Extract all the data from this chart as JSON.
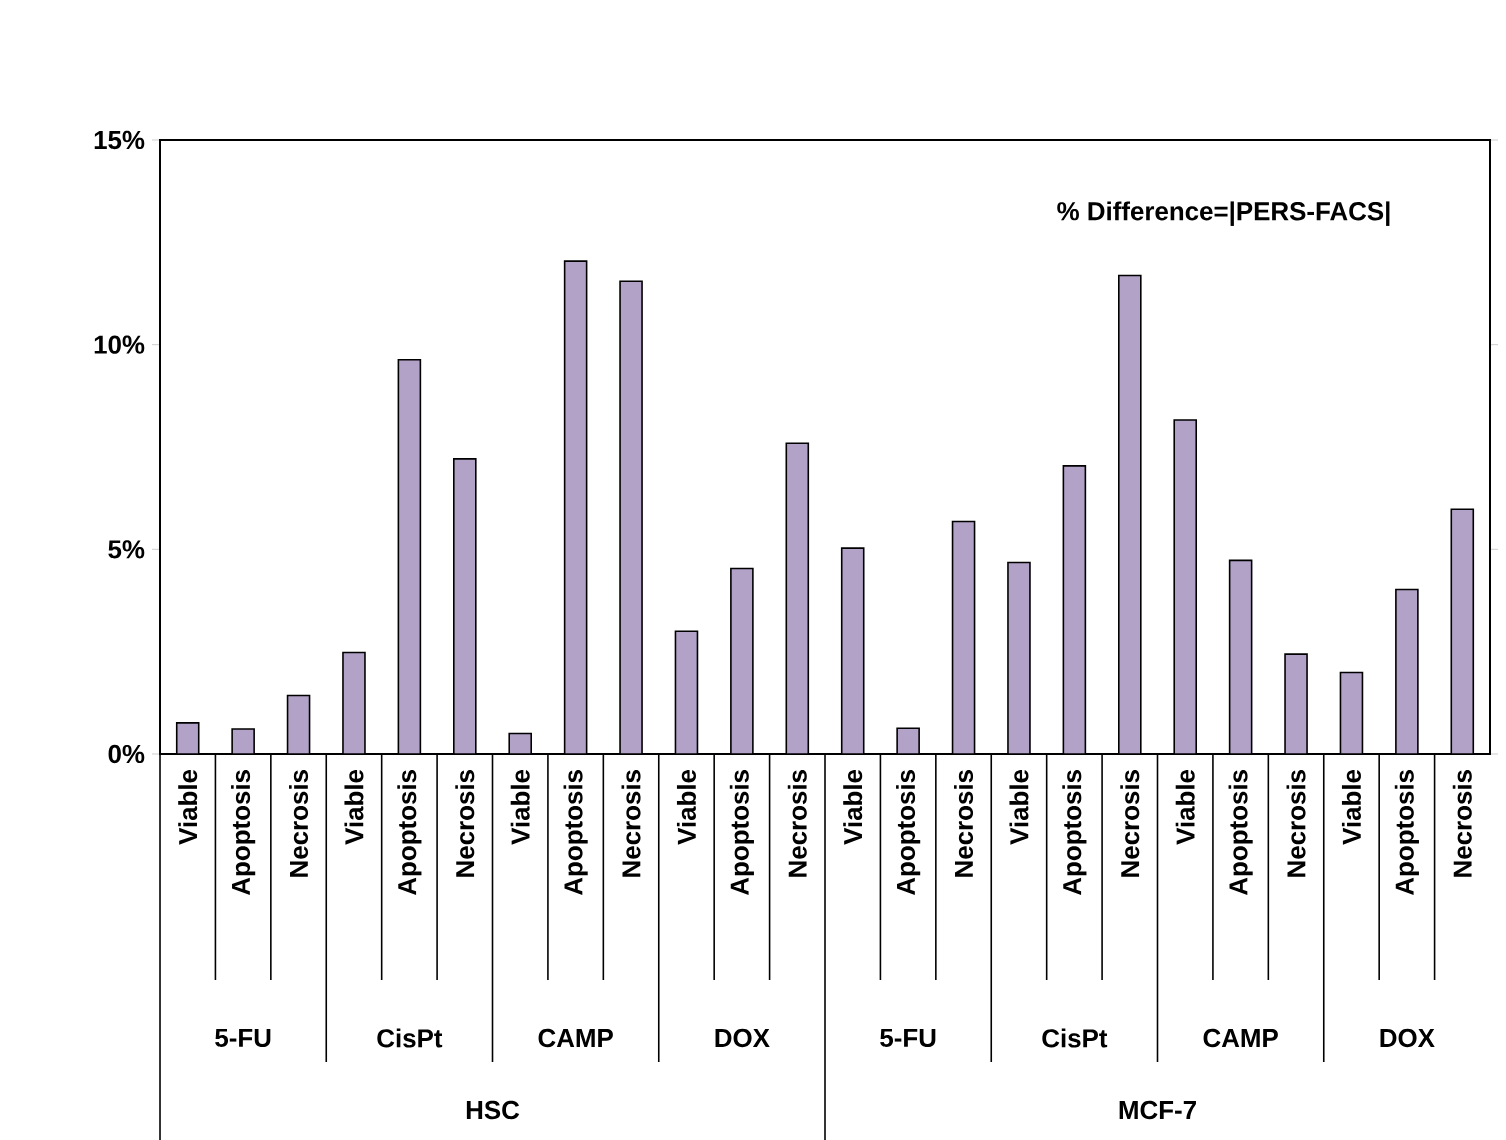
{
  "chart_data": {
    "type": "bar",
    "categories": [
      "Viable",
      "Apoptosis",
      "Necrosis",
      "Viable",
      "Apoptosis",
      "Necrosis",
      "Viable",
      "Apoptosis",
      "Necrosis",
      "Viable",
      "Apoptosis",
      "Necrosis",
      "Viable",
      "Apoptosis",
      "Necrosis",
      "Viable",
      "Apoptosis",
      "Necrosis",
      "Viable",
      "Apoptosis",
      "Necrosis",
      "Viable",
      "Apoptosis",
      "Necrosis"
    ],
    "values": [
      0.76,
      0.61,
      1.43,
      2.48,
      9.63,
      7.21,
      0.5,
      12.04,
      11.55,
      3.0,
      4.53,
      7.59,
      5.03,
      0.63,
      5.68,
      4.68,
      7.04,
      11.69,
      8.16,
      4.73,
      2.44,
      1.99,
      4.02,
      5.98
    ],
    "color": "#b3a2c7",
    "ylim": [
      0,
      15
    ],
    "yticks": [
      {
        "value": 0,
        "label": "0%"
      },
      {
        "value": 5,
        "label": "5%"
      },
      {
        "value": 10,
        "label": "10%"
      },
      {
        "value": 15,
        "label": "15%"
      }
    ],
    "annotations": [
      "5-FU",
      "CisPt",
      "CAMP",
      "DOX",
      "5-FU",
      "CisPt",
      "CAMP",
      "DOX",
      "HSC",
      "MCF-7",
      "% Difference=|PERS-FACS|"
    ]
  }
}
